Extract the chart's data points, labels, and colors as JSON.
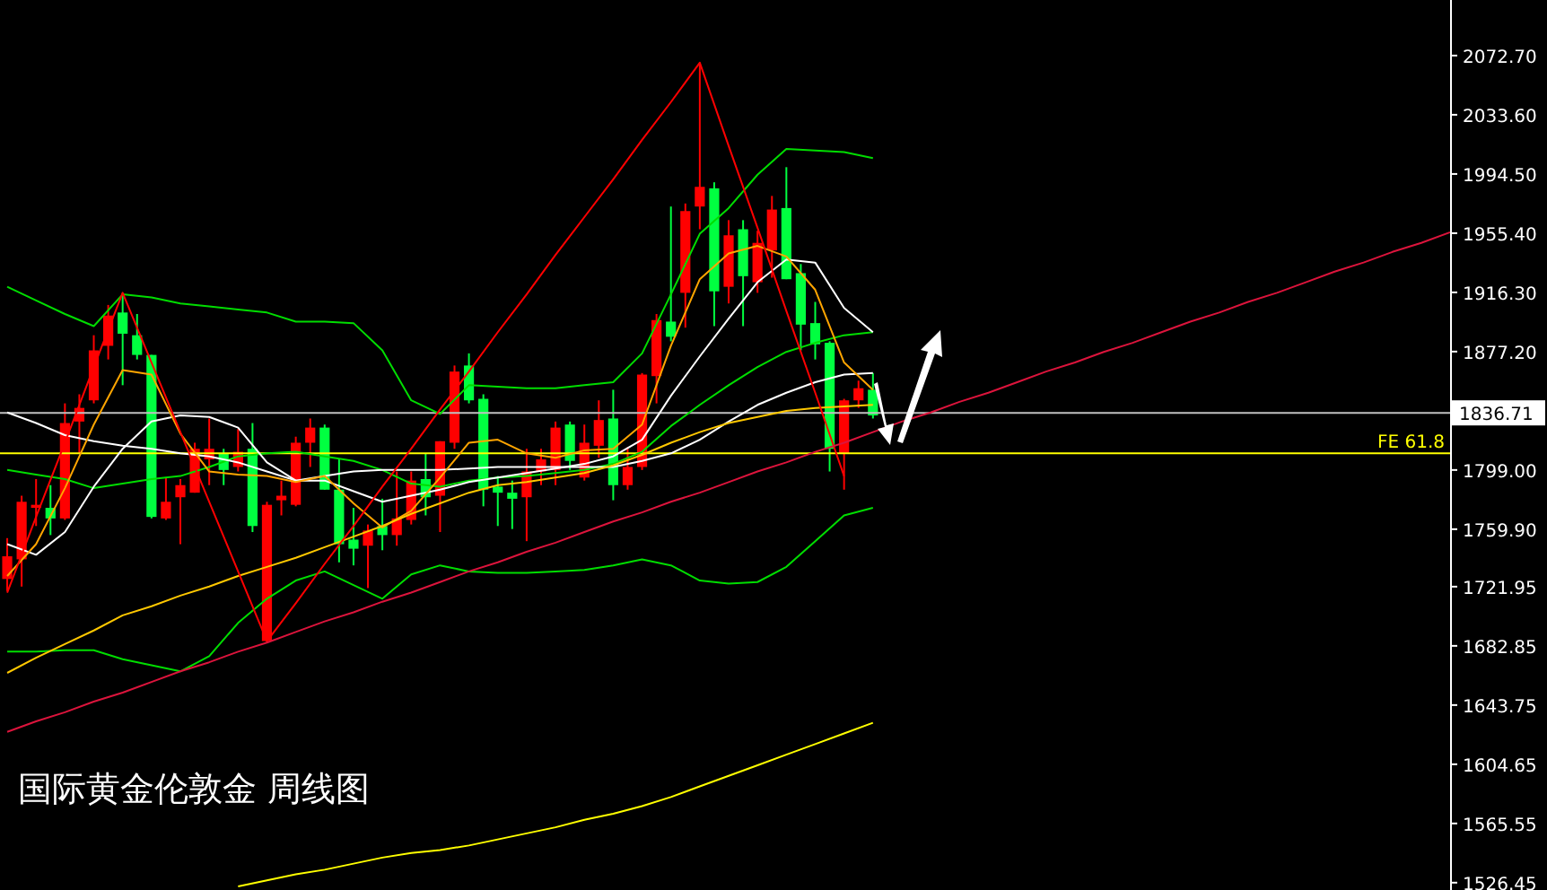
{
  "chart_data": [
    {
      "type": "candlestick",
      "title": "国际黄金伦敦金  周线图",
      "categories": [
        null,
        null,
        null,
        null,
        null,
        null,
        null,
        null,
        null,
        null,
        null,
        null,
        null,
        null,
        null,
        null,
        null,
        null,
        null,
        null,
        null,
        null,
        null,
        null,
        null,
        null,
        null,
        null,
        null,
        null,
        null,
        null,
        null,
        null,
        null,
        null,
        null,
        null,
        null,
        null,
        null,
        null,
        null,
        null,
        null,
        null,
        null,
        null,
        null,
        null,
        null,
        null,
        null,
        null,
        null,
        null,
        null,
        null,
        null,
        null,
        null
      ],
      "ohlc": [
        [
          1727,
          1754,
          1719,
          1742
        ],
        [
          1740,
          1782,
          1722,
          1778
        ],
        [
          1774,
          1793,
          1762,
          1776
        ],
        [
          1774,
          1789,
          1756,
          1767
        ],
        [
          1767,
          1843,
          1766,
          1830
        ],
        [
          1831,
          1849,
          1810,
          1840
        ],
        [
          1845,
          1888,
          1843,
          1878
        ],
        [
          1881,
          1908,
          1872,
          1901
        ],
        [
          1903,
          1916,
          1855,
          1889
        ],
        [
          1888,
          1902,
          1872,
          1875
        ],
        [
          1875,
          1875,
          1767,
          1768
        ],
        [
          1767,
          1794,
          1766,
          1778
        ],
        [
          1781,
          1793,
          1750,
          1789
        ],
        [
          1784,
          1817,
          1784,
          1813
        ],
        [
          1806,
          1833,
          1789,
          1813
        ],
        [
          1810,
          1813,
          1789,
          1799
        ],
        [
          1801,
          1826,
          1798,
          1811
        ],
        [
          1813,
          1830,
          1758,
          1762
        ],
        [
          1686,
          1778,
          1685,
          1776
        ],
        [
          1779,
          1792,
          1769,
          1782
        ],
        [
          1776,
          1821,
          1775,
          1817
        ],
        [
          1817,
          1833,
          1801,
          1827
        ],
        [
          1827,
          1829,
          1786,
          1786
        ],
        [
          1786,
          1806,
          1738,
          1750
        ],
        [
          1753,
          1774,
          1736,
          1747
        ],
        [
          1749,
          1763,
          1721,
          1759
        ],
        [
          1762,
          1780,
          1746,
          1756
        ],
        [
          1756,
          1798,
          1749,
          1767
        ],
        [
          1766,
          1798,
          1763,
          1792
        ],
        [
          1793,
          1810,
          1769,
          1781
        ],
        [
          1782,
          1818,
          1758,
          1818
        ],
        [
          1817,
          1868,
          1813,
          1864
        ],
        [
          1868,
          1876,
          1843,
          1845
        ],
        [
          1846,
          1849,
          1775,
          1786
        ],
        [
          1788,
          1795,
          1762,
          1784
        ],
        [
          1784,
          1792,
          1760,
          1780
        ],
        [
          1781,
          1813,
          1752,
          1798
        ],
        [
          1798,
          1813,
          1789,
          1806
        ],
        [
          1799,
          1831,
          1789,
          1827
        ],
        [
          1829,
          1831,
          1799,
          1805
        ],
        [
          1794,
          1829,
          1792,
          1817
        ],
        [
          1815,
          1845,
          1807,
          1832
        ],
        [
          1833,
          1852,
          1779,
          1789
        ],
        [
          1789,
          1814,
          1786,
          1801
        ],
        [
          1801,
          1863,
          1799,
          1862
        ],
        [
          1861,
          1902,
          1843,
          1898
        ],
        [
          1897,
          1973,
          1884,
          1887
        ],
        [
          1916,
          1975,
          1893,
          1970
        ],
        [
          1973,
          2068,
          1958,
          1986
        ],
        [
          1985,
          1989,
          1894,
          1917
        ],
        [
          1920,
          1964,
          1909,
          1954
        ],
        [
          1958,
          1964,
          1894,
          1927
        ],
        [
          1923,
          1957,
          1916,
          1949
        ],
        [
          1944,
          1980,
          1926,
          1971
        ],
        [
          1972,
          1999,
          1925,
          1925
        ],
        [
          1929,
          1935,
          1878,
          1895
        ],
        [
          1896,
          1910,
          1872,
          1882
        ],
        [
          1883,
          1884,
          1798,
          1813
        ],
        [
          1810,
          1846,
          1786,
          1845
        ],
        [
          1845,
          1858,
          1840,
          1853
        ],
        [
          1852,
          1863,
          1833,
          1835
        ]
      ],
      "colors": [
        "#ff0000",
        "#ff0000",
        "#ff0000",
        "#00ff40",
        "#ff0000",
        "#ff0000",
        "#ff0000",
        "#ff0000",
        "#00ff40",
        "#00ff40",
        "#00ff40",
        "#ff0000",
        "#ff0000",
        "#ff0000",
        "#ff0000",
        "#00ff40",
        "#ff0000",
        "#00ff40",
        "#ff0000",
        "#ff0000",
        "#ff0000",
        "#ff0000",
        "#00ff40",
        "#00ff40",
        "#00ff40",
        "#ff0000",
        "#00ff40",
        "#ff0000",
        "#ff0000",
        "#00ff40",
        "#ff0000",
        "#ff0000",
        "#00ff40",
        "#00ff40",
        "#00ff40",
        "#00ff40",
        "#ff0000",
        "#ff0000",
        "#ff0000",
        "#00ff40",
        "#ff0000",
        "#ff0000",
        "#00ff40",
        "#ff0000",
        "#ff0000",
        "#ff0000",
        "#00ff40",
        "#ff0000",
        "#ff0000",
        "#00ff40",
        "#ff0000",
        "#00ff40",
        "#ff0000",
        "#ff0000",
        "#00ff40",
        "#00ff40",
        "#00ff40",
        "#00ff40",
        "#ff0000",
        "#ff0000",
        "#00ff40"
      ],
      "ylim": [
        1521.6,
        2109.4
      ],
      "tick_labels": false
    },
    {
      "type": "line",
      "categories": [
        null,
        null,
        null,
        null,
        null,
        null,
        null,
        null,
        null,
        null,
        null,
        null,
        null,
        null,
        null,
        null,
        null,
        null,
        null,
        null,
        null,
        null,
        null,
        null,
        null,
        null,
        null,
        null,
        null,
        null,
        null,
        null,
        null,
        null,
        null,
        null,
        null,
        null,
        null,
        null,
        null,
        null,
        null,
        null,
        null,
        null,
        null,
        null,
        null,
        null,
        null
      ],
      "series": [
        {
          "color": "#00dd00",
          "values": [
            1920,
            1911,
            1902,
            1894,
            1915,
            1913,
            1909,
            1907,
            1905,
            1903,
            1897,
            1897,
            1896,
            1878,
            1845,
            1836,
            1855,
            1854,
            1853,
            1853,
            1855,
            1857,
            1876,
            1915,
            1955,
            1972,
            1994,
            2011,
            2010,
            2009,
            2005,
            null,
            null,
            null,
            null,
            null,
            null,
            null,
            null,
            null,
            null,
            null,
            null,
            null,
            null,
            null,
            null,
            null,
            null,
            null,
            null
          ]
        },
        {
          "color": "#00dd00",
          "values": [
            1799,
            1796,
            1793,
            1787,
            1790,
            1793,
            1795,
            1801,
            1808,
            1810,
            1811,
            1808,
            1805,
            1799,
            1790,
            1788,
            1792,
            1794,
            1795,
            1797,
            1799,
            1803,
            1811,
            1828,
            1842,
            1855,
            1867,
            1877,
            1883,
            1888,
            1890,
            null,
            null,
            null,
            null,
            null,
            null,
            null,
            null,
            null,
            null,
            null,
            null,
            null,
            null,
            null,
            null,
            null,
            null,
            null,
            null
          ]
        },
        {
          "color": "#00dd00",
          "values": [
            1679,
            1679,
            1680,
            1680,
            1674,
            1670,
            1666,
            1676,
            1698,
            1714,
            1726,
            1732,
            1723,
            1714,
            1730,
            1736,
            1732,
            1731,
            1731,
            1732,
            1733,
            1736,
            1740,
            1736,
            1726,
            1724,
            1725,
            1735,
            1752,
            1769,
            1774,
            null,
            null,
            null,
            null,
            null,
            null,
            null,
            null,
            null,
            null,
            null,
            null,
            null,
            null,
            null,
            null,
            null,
            null,
            null,
            null
          ]
        },
        {
          "color": "#ffffff",
          "values": [
            1750,
            1743,
            1758,
            1788,
            1813,
            1831,
            1835,
            1834,
            1827,
            1804,
            1792,
            1792,
            1785,
            1778,
            1782,
            1786,
            1791,
            1794,
            1797,
            1800,
            1803,
            1808,
            1819,
            1848,
            1874,
            1899,
            1923,
            1938,
            1936,
            1906,
            1890,
            null,
            null,
            null,
            null,
            null,
            null,
            null,
            null,
            null,
            null,
            null,
            null,
            null,
            null,
            null,
            null,
            null,
            null,
            null,
            null
          ]
        },
        {
          "color": "#ffffff",
          "values": [
            1837,
            1830,
            1822,
            1818,
            1815,
            1813,
            1810,
            1808,
            1804,
            1798,
            1792,
            1795,
            1798,
            1799,
            1799,
            1799,
            1800,
            1801,
            1801,
            1801,
            1801,
            1801,
            1805,
            1810,
            1819,
            1831,
            1842,
            1850,
            1857,
            1862,
            1863,
            null,
            null,
            null,
            null,
            null,
            null,
            null,
            null,
            null,
            null,
            null,
            null,
            null,
            null,
            null,
            null,
            null,
            null,
            null,
            null
          ]
        },
        {
          "color": "#ffa500",
          "values": [
            1729,
            1750,
            1787,
            1829,
            1865,
            1862,
            1823,
            1798,
            1796,
            1795,
            1791,
            1795,
            1777,
            1761,
            1772,
            1794,
            1817,
            1819,
            1810,
            1807,
            1812,
            1813,
            1829,
            1881,
            1925,
            1942,
            1947,
            1940,
            1918,
            1870,
            1852,
            null,
            null,
            null,
            null,
            null,
            null,
            null,
            null,
            null,
            null,
            null,
            null,
            null,
            null,
            null,
            null,
            null,
            null,
            null,
            null
          ]
        },
        {
          "color": "#ffc800",
          "values": [
            1665,
            1675,
            1684,
            1693,
            1703,
            1709,
            1716,
            1722,
            1729,
            1735,
            1741,
            1748,
            1755,
            1762,
            1770,
            1777,
            1784,
            1789,
            1791,
            1794,
            1797,
            1802,
            1809,
            1817,
            1824,
            1830,
            1834,
            1838,
            1840,
            1841,
            1842,
            null,
            null,
            null,
            null,
            null,
            null,
            null,
            null,
            null,
            null,
            null,
            null,
            null,
            null,
            null,
            null,
            null,
            null,
            null,
            null
          ]
        },
        {
          "color": "#ffff00",
          "values": [
            null,
            null,
            null,
            null,
            null,
            null,
            null,
            null,
            1524,
            1528,
            1532,
            1535,
            1539,
            1543,
            1546,
            1548,
            1551,
            1555,
            1559,
            1563,
            1568,
            1572,
            1577,
            1583,
            1590,
            1597,
            1604,
            1611,
            1618,
            1625,
            1632,
            null,
            null,
            null,
            null,
            null,
            null,
            null,
            null,
            null,
            null,
            null,
            null,
            null,
            null,
            null,
            null,
            null,
            null,
            null,
            null
          ]
        },
        {
          "color": "#ff0000",
          "values": [
            1718,
            1768,
            1817,
            1867,
            1916,
            1870,
            1824,
            1778,
            1732,
            1686,
            1711,
            1737,
            1762,
            1788,
            1813,
            1839,
            1864,
            1890,
            1915,
            1941,
            1966,
            1991,
            2017,
            2042,
            2068,
            2013,
            1959,
            1904,
            1850,
            1795,
            null,
            null,
            null,
            null,
            null,
            null,
            null,
            null,
            null,
            null,
            null,
            null,
            null,
            null,
            null,
            null,
            null,
            null,
            null,
            null,
            null
          ]
        },
        {
          "color": "#dc143c",
          "values": [
            1626,
            1633,
            1639,
            1646,
            1652,
            1659,
            1666,
            1672,
            1679,
            1685,
            1692,
            1699,
            1705,
            1712,
            1718,
            1725,
            1732,
            1738,
            1745,
            1751,
            1758,
            1765,
            1771,
            1778,
            1784,
            1791,
            1798,
            1804,
            1811,
            1817,
            1824,
            1831,
            1837,
            1844,
            1850,
            1857,
            1864,
            1870,
            1877,
            1883,
            1890,
            1897,
            1903,
            1910,
            1916,
            1923,
            1930,
            1936,
            1943,
            1949,
            1956
          ]
        }
      ],
      "ylim": [
        1521.6,
        2109.4
      ],
      "yticks": [
        {
          "value": 2072.7,
          "label": "2072.70"
        },
        {
          "value": 2033.6,
          "label": "2033.60"
        },
        {
          "value": 1994.5,
          "label": "1994.50"
        },
        {
          "value": 1955.4,
          "label": "1955.40"
        },
        {
          "value": 1916.3,
          "label": "1916.30"
        },
        {
          "value": 1877.2,
          "label": "1877.20"
        },
        {
          "value": 1799,
          "label": "1799.00"
        },
        {
          "value": 1759.9,
          "label": "1759.90"
        },
        {
          "value": 1721.95,
          "label": "1721.95"
        },
        {
          "value": 1682.85,
          "label": "1682.85"
        },
        {
          "value": 1643.75,
          "label": "1643.75"
        },
        {
          "value": 1604.65,
          "label": "1604.65"
        },
        {
          "value": 1565.55,
          "label": "1565.55"
        },
        {
          "value": 1526.45,
          "label": "1526.45"
        }
      ],
      "ref_lines": [
        {
          "axis": "y",
          "value": 1836.71,
          "label": "1836.71",
          "color": "#c0c0c0"
        },
        {
          "axis": "y",
          "value": 1810,
          "label": "FE 61.8",
          "color": "#ffff00"
        }
      ],
      "tick_labels": "y"
    }
  ]
}
